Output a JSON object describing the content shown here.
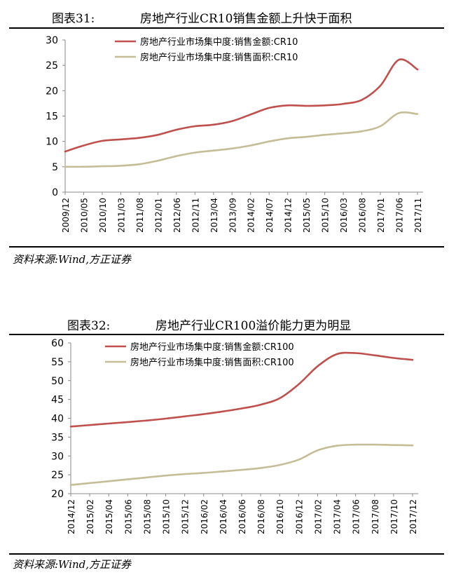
{
  "colors": {
    "red": "#C0504D",
    "tan": "#C4BD97",
    "axis": "#888888"
  },
  "chart_data": [
    {
      "type": "line",
      "figure_label": "图表31:",
      "title": "房地产行业CR10销售金额上升快于面积",
      "source": "资料来源:Wind,方正证券",
      "categories": [
        "2009/12",
        "2010/05",
        "2010/10",
        "2011/03",
        "2011/08",
        "2012/01",
        "2012/06",
        "2012/11",
        "2013/04",
        "2013/09",
        "2014/02",
        "2014/07",
        "2014/12",
        "2015/05",
        "2015/10",
        "2016/03",
        "2016/08",
        "2017/01",
        "2017/06",
        "2017/11"
      ],
      "ylim": [
        0,
        30
      ],
      "yticks": [
        0,
        5,
        10,
        15,
        20,
        25,
        30
      ],
      "series": [
        {
          "name": "房地产行业市场集中度:销售金额:CR10",
          "color": "#C0504D",
          "values": [
            8.0,
            9.2,
            10.1,
            10.4,
            10.7,
            11.3,
            12.3,
            13.0,
            13.3,
            14.0,
            15.3,
            16.6,
            17.1,
            17.0,
            17.1,
            17.4,
            18.2,
            21.0,
            26.1,
            24.2
          ]
        },
        {
          "name": "房地产行业市场集中度:销售面积:CR10",
          "color": "#C4BD97",
          "values": [
            5.0,
            5.0,
            5.1,
            5.2,
            5.5,
            6.2,
            7.1,
            7.8,
            8.2,
            8.6,
            9.2,
            10.0,
            10.6,
            10.9,
            11.3,
            11.6,
            12.0,
            13.0,
            15.6,
            15.4
          ]
        }
      ]
    },
    {
      "type": "line",
      "figure_label": "图表32:",
      "title": "房地产行业CR100溢价能力更为明显",
      "source": "资料来源:Wind,方正证券",
      "categories": [
        "2014/12",
        "2015/02",
        "2015/04",
        "2015/06",
        "2015/08",
        "2015/10",
        "2015/12",
        "2016/02",
        "2016/04",
        "2016/06",
        "2016/08",
        "2016/10",
        "2016/12",
        "2017/02",
        "2017/04",
        "2017/06",
        "2017/08",
        "2017/10",
        "2017/12"
      ],
      "ylim": [
        20,
        60
      ],
      "yticks": [
        20,
        25,
        30,
        35,
        40,
        45,
        50,
        55,
        60
      ],
      "series": [
        {
          "name": "房地产行业市场集中度:销售金额:CR100",
          "color": "#C0504D",
          "values": [
            37.8,
            38.2,
            38.6,
            39.0,
            39.4,
            39.9,
            40.5,
            41.1,
            41.8,
            42.6,
            43.6,
            45.3,
            49.0,
            53.8,
            57.0,
            57.3,
            56.7,
            56.0,
            55.5
          ]
        },
        {
          "name": "房地产行业市场集中度:销售面积:CR100",
          "color": "#C4BD97",
          "values": [
            22.3,
            22.8,
            23.3,
            23.8,
            24.3,
            24.8,
            25.2,
            25.5,
            25.9,
            26.3,
            26.8,
            27.6,
            29.0,
            31.5,
            32.7,
            33.0,
            33.0,
            32.9,
            32.8
          ]
        }
      ]
    }
  ]
}
